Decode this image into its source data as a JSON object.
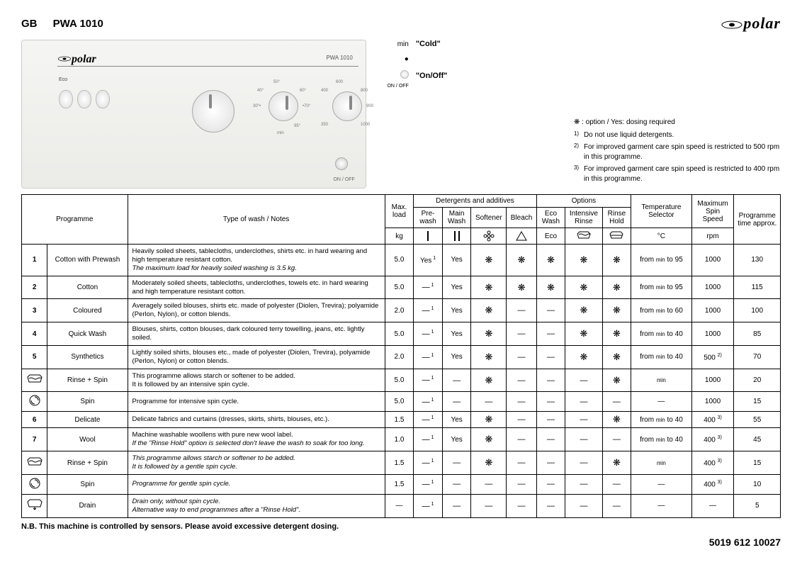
{
  "brand": "polar",
  "header": {
    "gb": "GB",
    "model": "PWA 1010"
  },
  "panel": {
    "model_small": "PWA 1010",
    "eco": "Eco",
    "onoff": "ON / OFF"
  },
  "legend": {
    "min_key": "min",
    "min_val": "\"Cold\"",
    "onoff_key": "ON / OFF",
    "onoff_val": "\"On/Off\""
  },
  "notes": {
    "star": "❋ : option / Yes: dosing required",
    "n1": "Do not use liquid detergents.",
    "n2": "For improved garment care spin speed is restricted to 500 rpm in this programme.",
    "n3": "For improved garment care spin speed is restricted to 400 rpm in this programme."
  },
  "table": {
    "hdr": {
      "programme": "Programme",
      "type": "Type of wash / Notes",
      "maxload": "Max. load",
      "kg": "kg",
      "detergents": "Detergents and additives",
      "prewash": "Pre-wash",
      "mainwash": "Main Wash",
      "softener": "Softener",
      "bleach": "Bleach",
      "options": "Options",
      "ecowash": "Eco Wash",
      "ecowash_sub": "Eco",
      "intrinse": "Intensive Rinse",
      "rinsehold": "Rinse Hold",
      "temp": "Temperature Selector",
      "degc": "°C",
      "maxspin": "Maximum Spin Speed",
      "rpm": "rpm",
      "progtime": "Programme time approx."
    },
    "rows": [
      {
        "num": "1",
        "name": "Cotton with Prewash",
        "notes": "Heavily soiled sheets, tablecloths, underclothes, shirts etc. in hard wearing and high temperature resistant cotton.",
        "notes_italic": "The maximum load for heavily soiled washing is 3.5 kg.",
        "load": "5.0",
        "pre": "Yes",
        "pre_sup": "1",
        "main": "Yes",
        "soft": "*",
        "bleach": "*",
        "eco": "*",
        "int": "*",
        "hold": "*",
        "temp_prefix": "from",
        "temp_min": "min",
        "temp_to": "to 95",
        "spin": "1000",
        "time": "130"
      },
      {
        "num": "2",
        "name": "Cotton",
        "notes": "Moderately soiled sheets, tablecloths, underclothes, towels etc. in hard wearing and high temperature resistant cotton.",
        "load": "5.0",
        "pre": "—",
        "pre_sup": "1",
        "main": "Yes",
        "soft": "*",
        "bleach": "*",
        "eco": "*",
        "int": "*",
        "hold": "*",
        "temp_prefix": "from",
        "temp_min": "min",
        "temp_to": "to 95",
        "spin": "1000",
        "time": "115"
      },
      {
        "num": "3",
        "name": "Coloured",
        "notes": "Averagely soiled blouses, shirts etc. made of polyester (Diolen, Trevira); polyamide (Perlon, Nylon), or cotton blends.",
        "load": "2.0",
        "pre": "—",
        "pre_sup": "1",
        "main": "Yes",
        "soft": "*",
        "bleach": "—",
        "eco": "—",
        "int": "*",
        "hold": "*",
        "temp_prefix": "from",
        "temp_min": "min",
        "temp_to": "to 60",
        "spin": "1000",
        "time": "100"
      },
      {
        "num": "4",
        "name": "Quick Wash",
        "notes": "Blouses, shirts, cotton blouses, dark coloured terry towelling, jeans, etc. lightly soiled.",
        "load": "5.0",
        "pre": "—",
        "pre_sup": "1",
        "main": "Yes",
        "soft": "*",
        "bleach": "—",
        "eco": "—",
        "int": "*",
        "hold": "*",
        "temp_prefix": "from",
        "temp_min": "min",
        "temp_to": "to 40",
        "spin": "1000",
        "time": "85"
      },
      {
        "num": "5",
        "name": "Synthetics",
        "notes": "Lightly soiled shirts, blouses etc., made of polyester (Diolen, Trevira), polyamide (Perlon, Nylon) or cotton blends.",
        "load": "2.0",
        "pre": "—",
        "pre_sup": "1",
        "main": "Yes",
        "soft": "*",
        "bleach": "—",
        "eco": "—",
        "int": "*",
        "hold": "*",
        "temp_prefix": "from",
        "temp_min": "min",
        "temp_to": "to 40",
        "spin": "500",
        "spin_sup": "2)",
        "time": "70"
      },
      {
        "num": "rinse1",
        "icon": "rinse",
        "name": "Rinse + Spin",
        "notes": "This programme allows starch or softener to be added.\nIt is followed by an intensive spin cycle.",
        "load": "5.0",
        "pre": "—",
        "pre_sup": "1",
        "main": "—",
        "soft": "*",
        "bleach": "—",
        "eco": "—",
        "int": "—",
        "hold": "*",
        "temp_prefix": "",
        "temp_min": "min",
        "temp_to": "",
        "spin": "1000",
        "time": "20"
      },
      {
        "num": "spin1",
        "icon": "spin",
        "name": "Spin",
        "notes": "Programme for intensive spin cycle.",
        "load": "5.0",
        "pre": "—",
        "pre_sup": "1",
        "main": "—",
        "soft": "—",
        "bleach": "—",
        "eco": "—",
        "int": "—",
        "hold": "—",
        "temp_prefix": "—",
        "temp_min": "",
        "temp_to": "",
        "spin": "1000",
        "time": "15"
      },
      {
        "num": "6",
        "name": "Delicate",
        "notes": "Delicate fabrics and curtains (dresses, skirts, shirts, blouses, etc.).",
        "load": "1.5",
        "pre": "—",
        "pre_sup": "1",
        "main": "Yes",
        "soft": "*",
        "bleach": "—",
        "eco": "—",
        "int": "—",
        "hold": "*",
        "temp_prefix": "from",
        "temp_min": "min",
        "temp_to": "to 40",
        "spin": "400",
        "spin_sup": "3)",
        "time": "55"
      },
      {
        "num": "7",
        "name": "Wool",
        "notes": "Machine washable woollens with pure new wool label.",
        "notes_italic": "If the \"Rinse Hold\" option is selected don't leave the wash to soak for too long.",
        "load": "1.0",
        "pre": "—",
        "pre_sup": "1",
        "main": "Yes",
        "soft": "*",
        "bleach": "—",
        "eco": "—",
        "int": "—",
        "hold": "—",
        "temp_prefix": "from",
        "temp_min": "min",
        "temp_to": "to 40",
        "spin": "400",
        "spin_sup": "3)",
        "time": "45"
      },
      {
        "num": "rinse2",
        "icon": "rinse",
        "name": "Rinse + Spin",
        "notes_italic_full": "This programme allows starch or softener to be added.\nIt is followed by a gentle spin cycle.",
        "load": "1.5",
        "pre": "—",
        "pre_sup": "1",
        "main": "—",
        "soft": "*",
        "bleach": "—",
        "eco": "—",
        "int": "—",
        "hold": "*",
        "temp_prefix": "",
        "temp_min": "min",
        "temp_to": "",
        "spin": "400",
        "spin_sup": "3)",
        "time": "15"
      },
      {
        "num": "spin2",
        "icon": "spin",
        "name": "Spin",
        "notes_italic_full": "Programme for gentle spin cycle.",
        "load": "1.5",
        "pre": "—",
        "pre_sup": "1",
        "main": "—",
        "soft": "—",
        "bleach": "—",
        "eco": "—",
        "int": "—",
        "hold": "—",
        "temp_prefix": "—",
        "temp_min": "",
        "temp_to": "",
        "spin": "400",
        "spin_sup": "3)",
        "time": "10"
      },
      {
        "num": "drain",
        "icon": "drain",
        "name": "Drain",
        "notes_italic_full": "Drain only, without spin cycle.\nAlternative way to end programmes after a \"Rinse Hold\".",
        "load": "—",
        "pre": "—",
        "pre_sup": "1",
        "main": "—",
        "soft": "—",
        "bleach": "—",
        "eco": "—",
        "int": "—",
        "hold": "—",
        "temp_prefix": "—",
        "temp_min": "",
        "temp_to": "",
        "spin": "—",
        "time": "5"
      }
    ]
  },
  "nb": "N.B. This machine is controlled by sensors. Please avoid excessive detergent dosing.",
  "footer_code": "5019 612 10027",
  "colors": {
    "border": "#000000",
    "panel_bg": "#ecece9"
  }
}
